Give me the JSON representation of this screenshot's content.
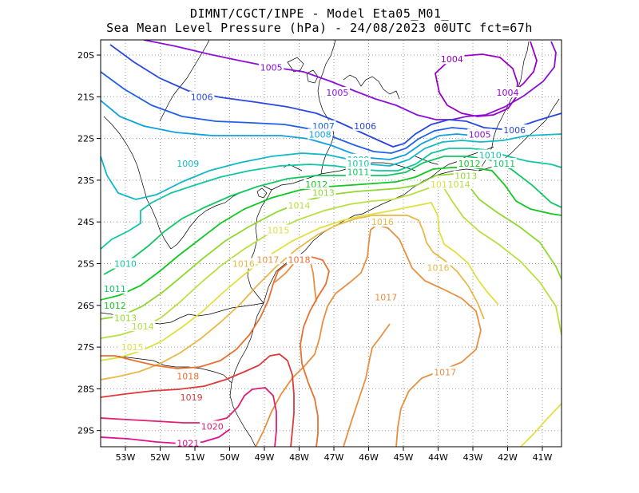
{
  "title": {
    "line1": "DIMNT/CGCT/INPE -  Model Eta05_M01_",
    "line2": "Sea Mean Level Pressure (hPa) - 24/08/2023 00UTC fct=67h"
  },
  "axes": {
    "lat_labels": [
      "20S",
      "21S",
      "22S",
      "23S",
      "24S",
      "25S",
      "26S",
      "27S",
      "28S",
      "29S"
    ],
    "lon_labels": [
      "53W",
      "52W",
      "51W",
      "50W",
      "49W",
      "48W",
      "47W",
      "46W",
      "45W",
      "44W",
      "43W",
      "42W",
      "41W"
    ]
  },
  "contours": [
    {
      "level": "1004",
      "color": "#9a00c8"
    },
    {
      "level": "1005",
      "color": "#8a10d8"
    },
    {
      "level": "1006",
      "color": "#2848e0"
    },
    {
      "level": "1007",
      "color": "#2060e8"
    },
    {
      "level": "1008",
      "color": "#10a0e0"
    },
    {
      "level": "1009",
      "color": "#10b8c8"
    },
    {
      "level": "1010",
      "color": "#10c8a0"
    },
    {
      "level": "1011",
      "color": "#10c860"
    },
    {
      "level": "1012",
      "color": "#10c820"
    },
    {
      "level": "1013",
      "color": "#90d830"
    },
    {
      "level": "1014",
      "color": "#b8e040"
    },
    {
      "level": "1015",
      "color": "#e0e040"
    },
    {
      "level": "1016",
      "color": "#e8b848"
    },
    {
      "level": "1017",
      "color": "#e89040"
    },
    {
      "level": "1018",
      "color": "#e87030"
    },
    {
      "level": "1019",
      "color": "#e03838"
    },
    {
      "level": "1020",
      "color": "#e02070"
    },
    {
      "level": "1021",
      "color": "#e01090"
    }
  ],
  "labels": [
    {
      "text": "1005",
      "lon": -48.8,
      "lat": -20.3,
      "color": "#8a10d8"
    },
    {
      "text": "1004",
      "lon": -43.6,
      "lat": -20.1,
      "color": "#9a00c8"
    },
    {
      "text": "1005",
      "lon": -46.9,
      "lat": -20.9,
      "color": "#8a10d8"
    },
    {
      "text": "1004",
      "lon": -42.0,
      "lat": -20.9,
      "color": "#9a00c8"
    },
    {
      "text": "1006",
      "lon": -50.8,
      "lat": -21.0,
      "color": "#2848e0"
    },
    {
      "text": "1007",
      "lon": -47.3,
      "lat": -21.7,
      "color": "#2060e8"
    },
    {
      "text": "1006",
      "lon": -46.1,
      "lat": -21.7,
      "color": "#2848e0"
    },
    {
      "text": "1005",
      "lon": -42.8,
      "lat": -21.9,
      "color": "#8a10d8"
    },
    {
      "text": "1006",
      "lon": -41.8,
      "lat": -21.8,
      "color": "#2848e0"
    },
    {
      "text": "1008",
      "lon": -47.4,
      "lat": -21.9,
      "color": "#10a0e0"
    },
    {
      "text": "1009",
      "lon": -51.2,
      "lat": -22.6,
      "color": "#10b8c8"
    },
    {
      "text": "1010",
      "lon": -42.5,
      "lat": -22.4,
      "color": "#10c8a0"
    },
    {
      "text": "1011",
      "lon": -42.1,
      "lat": -22.6,
      "color": "#10c860"
    },
    {
      "text": "1009",
      "lon": -46.3,
      "lat": -22.5,
      "color": "#10b8c8"
    },
    {
      "text": "1010",
      "lon": -46.3,
      "lat": -22.6,
      "color": "#10c8a0"
    },
    {
      "text": "1011",
      "lon": -46.3,
      "lat": -22.8,
      "color": "#10c860"
    },
    {
      "text": "1012",
      "lon": -43.1,
      "lat": -22.6,
      "color": "#10c820"
    },
    {
      "text": "1012",
      "lon": -47.5,
      "lat": -23.1,
      "color": "#10c820"
    },
    {
      "text": "1013",
      "lon": -47.3,
      "lat": -23.3,
      "color": "#90d830"
    },
    {
      "text": "1013",
      "lon": -43.2,
      "lat": -22.9,
      "color": "#90d830"
    },
    {
      "text": "1015",
      "lon": -43.9,
      "lat": -23.1,
      "color": "#e0e040"
    },
    {
      "text": "1014",
      "lon": -43.4,
      "lat": -23.1,
      "color": "#b8e040"
    },
    {
      "text": "1014",
      "lon": -48.0,
      "lat": -23.6,
      "color": "#b8e040"
    },
    {
      "text": "1015",
      "lon": -48.6,
      "lat": -24.2,
      "color": "#e0e040"
    },
    {
      "text": "1016",
      "lon": -45.6,
      "lat": -24.0,
      "color": "#e8b848"
    },
    {
      "text": "1016",
      "lon": -49.6,
      "lat": -25.0,
      "color": "#e8b848"
    },
    {
      "text": "1017",
      "lon": -48.9,
      "lat": -24.9,
      "color": "#e89040"
    },
    {
      "text": "1018",
      "lon": -48.0,
      "lat": -24.9,
      "color": "#e87030"
    },
    {
      "text": "1016",
      "lon": -44.0,
      "lat": -25.1,
      "color": "#e8b848"
    },
    {
      "text": "1017",
      "lon": -45.5,
      "lat": -25.8,
      "color": "#e89040"
    },
    {
      "text": "1010",
      "lon": -53.0,
      "lat": -25.0,
      "color": "#10c8a0"
    },
    {
      "text": "1011",
      "lon": -53.3,
      "lat": -25.6,
      "color": "#10c860"
    },
    {
      "text": "1012",
      "lon": -53.3,
      "lat": -26.0,
      "color": "#10c820"
    },
    {
      "text": "1013",
      "lon": -53.0,
      "lat": -26.3,
      "color": "#90d830"
    },
    {
      "text": "1014",
      "lon": -52.5,
      "lat": -26.5,
      "color": "#b8e040"
    },
    {
      "text": "1015",
      "lon": -52.8,
      "lat": -27.0,
      "color": "#e0e040"
    },
    {
      "text": "1017",
      "lon": -43.8,
      "lat": -27.6,
      "color": "#e89040"
    },
    {
      "text": "1018",
      "lon": -51.2,
      "lat": -27.7,
      "color": "#e87030"
    },
    {
      "text": "1019",
      "lon": -51.1,
      "lat": -28.2,
      "color": "#e03838"
    },
    {
      "text": "1020",
      "lon": -50.5,
      "lat": -28.9,
      "color": "#e02070"
    },
    {
      "text": "1021",
      "lon": -51.2,
      "lat": -29.3,
      "color": "#e01090"
    }
  ]
}
